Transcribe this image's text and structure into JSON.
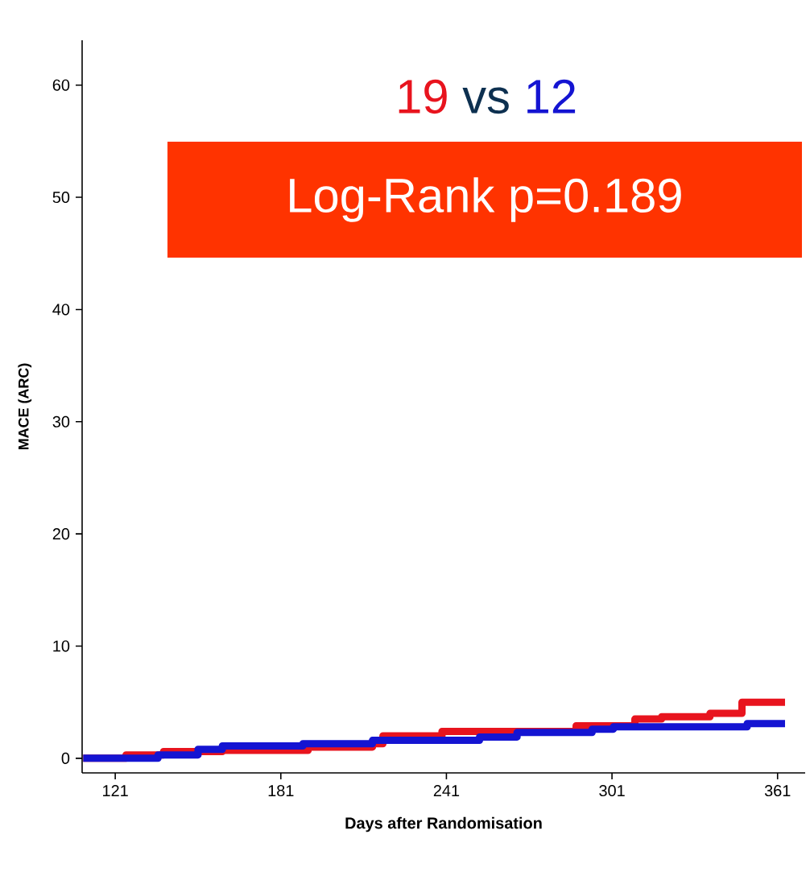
{
  "chart_data": {
    "type": "step",
    "xlabel": "Days after Randomisation",
    "ylabel": "MACE (ARC)",
    "annotations": [
      "19",
      "vs",
      "12",
      "Log-Rank p=0.189"
    ],
    "xlim": [
      109,
      371
    ],
    "ylim": [
      -1.3,
      64
    ],
    "xticks": [
      121,
      181,
      241,
      301,
      361
    ],
    "yticks": [
      0,
      10,
      20,
      30,
      40,
      50,
      60
    ],
    "grid": false,
    "line_style": "solid",
    "series": [
      {
        "color": "#e8141e",
        "x": [
          109.4,
          124.9,
          138.5,
          159.8,
          190.9,
          214.2,
          218,
          239.4,
          288,
          309.3,
          319,
          336.5,
          348.1,
          363.7
        ],
        "values": [
          0,
          0.3,
          0.6,
          0.7,
          1.0,
          1.3,
          2.0,
          2.4,
          2.9,
          3.5,
          3.7,
          4.0,
          5.0,
          5.0
        ]
      },
      {
        "color": "#1414d2",
        "x": [
          109.4,
          136.5,
          151,
          159.8,
          189,
          214.2,
          253,
          266.6,
          293.8,
          301.5,
          350,
          363.7
        ],
        "values": [
          0,
          0.3,
          0.8,
          1.1,
          1.3,
          1.6,
          1.9,
          2.3,
          2.6,
          2.8,
          3.1,
          3.1
        ]
      }
    ]
  }
}
